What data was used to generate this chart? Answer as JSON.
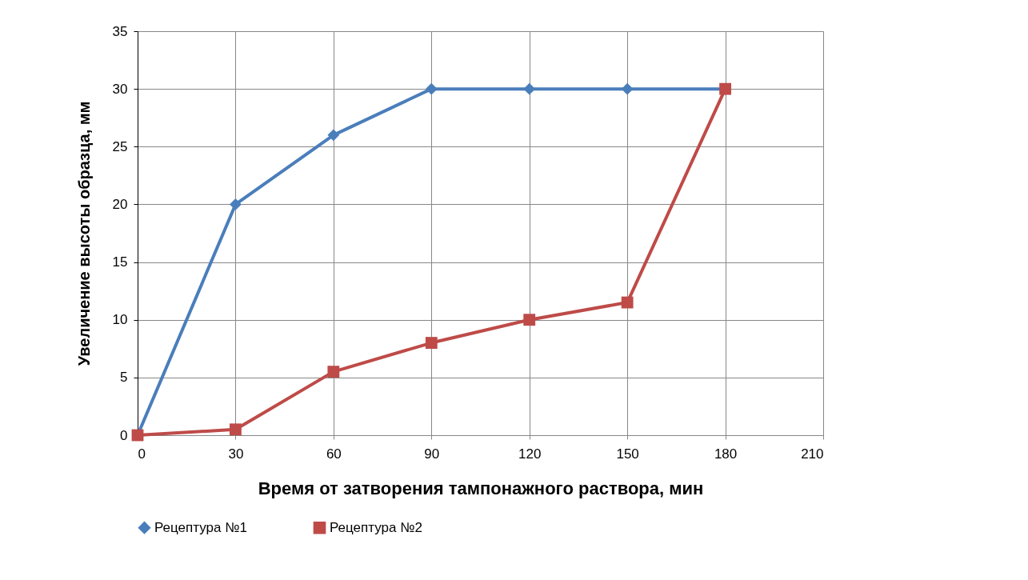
{
  "chart_data": {
    "type": "line",
    "xlabel": "Время от затворения тампонажного раствора, мин",
    "ylabel": "Увеличение высоты образца, мм",
    "x": [
      0,
      30,
      60,
      90,
      120,
      150,
      180
    ],
    "series": [
      {
        "name": "Рецептура №1",
        "color": "#4a7ebb",
        "marker": "diamond",
        "values": [
          0,
          20,
          26,
          30,
          30,
          30,
          30
        ]
      },
      {
        "name": "Рецептура №2",
        "color": "#be4b48",
        "marker": "square",
        "values": [
          0,
          0.5,
          5.5,
          8,
          10,
          11.5,
          30
        ]
      }
    ],
    "xlim": [
      0,
      210
    ],
    "xticks": [
      0,
      30,
      60,
      90,
      120,
      150,
      180,
      210
    ],
    "ylim": [
      0,
      35
    ],
    "yticks": [
      0,
      5,
      10,
      15,
      20,
      25,
      30,
      35
    ],
    "grid": true,
    "legend": "bottom",
    "line_style": "solid"
  }
}
